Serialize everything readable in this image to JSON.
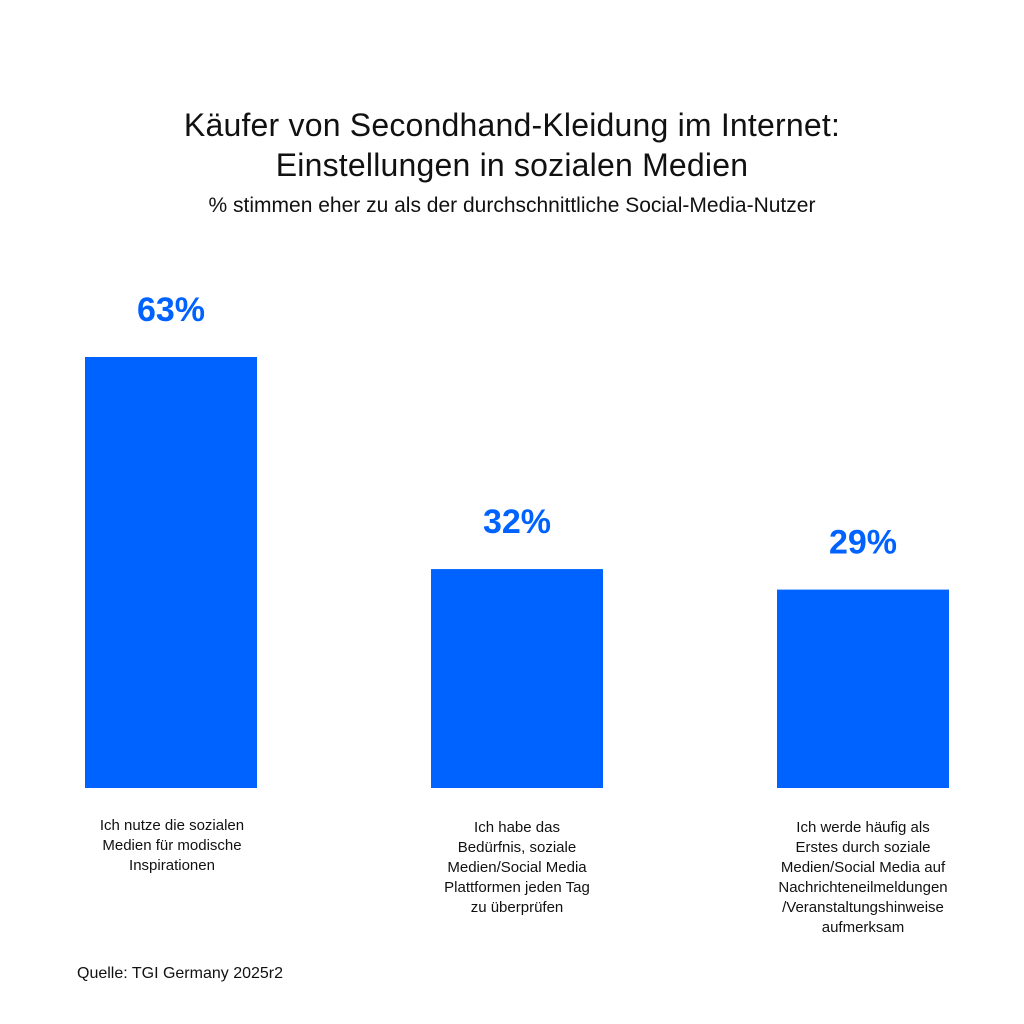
{
  "chart_data": {
    "type": "bar",
    "title_line1": "Käufer von Secondhand-Kleidung im Internet:",
    "title_line2": "Einstellungen in sozialen Medien",
    "subtitle": "% stimmen eher zu als der durchschnittliche Social-Media-Nutzer",
    "categories": [
      "Ich nutze die sozialen\nMedien für modische\nInspirationen",
      "Ich habe das\nBedürfnis, soziale\nMedien/Social Media\nPlattformen jeden Tag\nzu überprüfen",
      "Ich werde häufig als\nErstes durch soziale\nMedien/Social Media auf\nNachrichteneilmeldungen\n/Veranstaltungshinweise\naufmerksam"
    ],
    "values": [
      63,
      32,
      29
    ],
    "value_labels": [
      "63%",
      "32%",
      "29%"
    ],
    "unit": "%",
    "ylim": [
      0,
      63
    ],
    "grid": false,
    "legend": "none",
    "bar_color": "#0062FF",
    "value_label_color": "#0062FF"
  },
  "source": "Quelle: TGI Germany 2025r2"
}
